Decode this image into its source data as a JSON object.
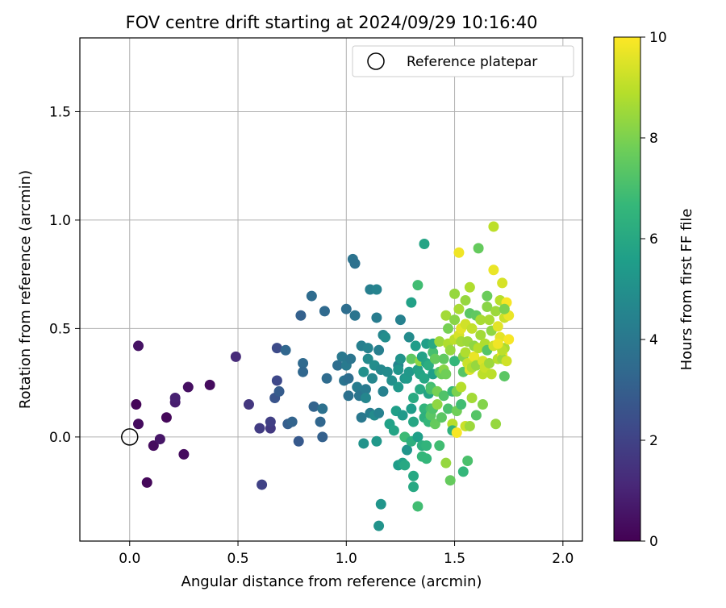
{
  "chart_data": {
    "type": "scatter",
    "title": "FOV centre drift starting at 2024/09/29 10:16:40",
    "xlabel": "Angular distance from reference (arcmin)",
    "ylabel": "Rotation from reference (arcmin)",
    "xlim": [
      -0.23,
      2.09
    ],
    "ylim": [
      -0.48,
      1.84
    ],
    "xticks": [
      0.0,
      0.5,
      1.0,
      1.5,
      2.0
    ],
    "xtick_labels": [
      "0.0",
      "0.5",
      "1.0",
      "1.5",
      "2.0"
    ],
    "yticks": [
      0.0,
      0.5,
      1.0,
      1.5
    ],
    "ytick_labels": [
      "0.0",
      "0.5",
      "1.0",
      "1.5"
    ],
    "grid": true,
    "legend": {
      "placement": "top-right",
      "entries": [
        "Reference platepar"
      ]
    },
    "reference_point": {
      "x": 0.0,
      "y": 0.0
    },
    "colorbar": {
      "label": "Hours from first FF file",
      "range": [
        0,
        10
      ],
      "ticks": [
        0,
        2,
        4,
        6,
        8,
        10
      ],
      "colormap": "viridis",
      "colors": [
        "#440154",
        "#482878",
        "#3e4989",
        "#31688e",
        "#26828e",
        "#1f9e89",
        "#35b779",
        "#6ece58",
        "#b5de2b",
        "#fde725"
      ]
    },
    "points": [
      [
        0.03,
        0.15,
        0.1
      ],
      [
        0.04,
        0.42,
        0.5
      ],
      [
        0.04,
        0.06,
        0.3
      ],
      [
        0.08,
        -0.21,
        0.2
      ],
      [
        0.11,
        -0.04,
        0.3
      ],
      [
        0.14,
        -0.01,
        0.6
      ],
      [
        0.17,
        0.09,
        0.2
      ],
      [
        0.21,
        0.16,
        0.8
      ],
      [
        0.21,
        0.18,
        0.9
      ],
      [
        0.25,
        -0.08,
        0.3
      ],
      [
        0.27,
        0.23,
        0.4
      ],
      [
        0.37,
        0.24,
        0.3
      ],
      [
        0.49,
        0.37,
        1.2
      ],
      [
        0.55,
        0.15,
        1.6
      ],
      [
        0.6,
        0.04,
        1.8
      ],
      [
        0.61,
        -0.22,
        2.0
      ],
      [
        0.65,
        0.04,
        1.7
      ],
      [
        0.65,
        0.07,
        1.9
      ],
      [
        0.67,
        0.18,
        2.6
      ],
      [
        0.68,
        0.26,
        2.2
      ],
      [
        0.68,
        0.41,
        2.3
      ],
      [
        0.69,
        0.21,
        2.9
      ],
      [
        0.72,
        0.4,
        3.3
      ],
      [
        0.73,
        0.06,
        3.0
      ],
      [
        0.75,
        0.07,
        3.2
      ],
      [
        0.78,
        -0.02,
        2.8
      ],
      [
        0.79,
        0.56,
        3.1
      ],
      [
        0.8,
        0.34,
        3.4
      ],
      [
        0.8,
        0.3,
        3.3
      ],
      [
        0.84,
        0.65,
        3.5
      ],
      [
        0.85,
        0.14,
        3.2
      ],
      [
        0.88,
        0.07,
        3.3
      ],
      [
        0.89,
        0.13,
        3.7
      ],
      [
        0.89,
        0.0,
        3.1
      ],
      [
        0.9,
        0.58,
        3.4
      ],
      [
        0.91,
        0.27,
        3.5
      ],
      [
        0.96,
        0.33,
        3.6
      ],
      [
        0.98,
        0.37,
        4.0
      ],
      [
        0.99,
        0.26,
        3.8
      ],
      [
        1.0,
        0.33,
        4.1
      ],
      [
        1.0,
        0.59,
        3.6
      ],
      [
        1.01,
        0.27,
        3.6
      ],
      [
        1.01,
        0.19,
        3.7
      ],
      [
        1.02,
        0.36,
        3.9
      ],
      [
        1.03,
        0.82,
        3.8
      ],
      [
        1.04,
        0.8,
        3.7
      ],
      [
        1.04,
        0.56,
        3.9
      ],
      [
        1.05,
        0.23,
        4.2
      ],
      [
        1.06,
        0.19,
        3.9
      ],
      [
        1.07,
        0.42,
        4.3
      ],
      [
        1.07,
        0.09,
        4.0
      ],
      [
        1.08,
        0.3,
        5.0
      ],
      [
        1.08,
        -0.03,
        5.1
      ],
      [
        1.09,
        0.22,
        4.1
      ],
      [
        1.09,
        0.18,
        4.6
      ],
      [
        1.1,
        0.41,
        4.5
      ],
      [
        1.1,
        0.36,
        4.8
      ],
      [
        1.11,
        0.11,
        4.2
      ],
      [
        1.11,
        0.68,
        4.3
      ],
      [
        1.12,
        0.27,
        4.6
      ],
      [
        1.13,
        0.1,
        4.8
      ],
      [
        1.13,
        0.33,
        4.9
      ],
      [
        1.14,
        0.68,
        4.5
      ],
      [
        1.14,
        0.55,
        4.2
      ],
      [
        1.14,
        -0.02,
        5.3
      ],
      [
        1.15,
        -0.41,
        5.1
      ],
      [
        1.15,
        0.11,
        4.4
      ],
      [
        1.15,
        0.4,
        4.3
      ],
      [
        1.16,
        0.31,
        4.7
      ],
      [
        1.16,
        -0.31,
        5.2
      ],
      [
        1.17,
        0.47,
        4.6
      ],
      [
        1.17,
        0.21,
        4.4
      ],
      [
        1.18,
        0.46,
        4.9
      ],
      [
        1.19,
        0.3,
        4.8
      ],
      [
        1.2,
        0.06,
        5.7
      ],
      [
        1.21,
        0.26,
        5.0
      ],
      [
        1.22,
        0.03,
        5.8
      ],
      [
        1.23,
        0.12,
        5.6
      ],
      [
        1.24,
        0.33,
        4.5
      ],
      [
        1.24,
        0.31,
        5.2
      ],
      [
        1.24,
        0.23,
        5.3
      ],
      [
        1.24,
        -0.13,
        5.5
      ],
      [
        1.25,
        0.54,
        4.4
      ],
      [
        1.25,
        0.36,
        5.1
      ],
      [
        1.26,
        0.1,
        5.4
      ],
      [
        1.26,
        -0.12,
        5.7
      ],
      [
        1.27,
        0.0,
        6.8
      ],
      [
        1.27,
        0.27,
        5.2
      ],
      [
        1.27,
        -0.13,
        6.0
      ],
      [
        1.28,
        0.27,
        5.4
      ],
      [
        1.28,
        -0.06,
        5.2
      ],
      [
        1.29,
        0.46,
        4.8
      ],
      [
        1.29,
        0.3,
        5.3
      ],
      [
        1.3,
        0.13,
        5.5
      ],
      [
        1.3,
        0.36,
        7.5
      ],
      [
        1.3,
        0.62,
        5.7
      ],
      [
        1.3,
        -0.02,
        6.3
      ],
      [
        1.31,
        -0.18,
        6.0
      ],
      [
        1.31,
        0.18,
        6.1
      ],
      [
        1.31,
        -0.23,
        6.0
      ],
      [
        1.31,
        0.07,
        5.9
      ],
      [
        1.32,
        0.42,
        5.5
      ],
      [
        1.33,
        0.31,
        5.7
      ],
      [
        1.33,
        0.0,
        5.6
      ],
      [
        1.33,
        0.7,
        6.9
      ],
      [
        1.33,
        -0.32,
        6.9
      ],
      [
        1.34,
        0.22,
        6.0
      ],
      [
        1.34,
        0.35,
        8.3
      ],
      [
        1.34,
        0.29,
        5.8
      ],
      [
        1.35,
        0.37,
        5.7
      ],
      [
        1.35,
        -0.09,
        6.6
      ],
      [
        1.35,
        -0.04,
        6.3
      ],
      [
        1.36,
        0.89,
        5.8
      ],
      [
        1.36,
        0.13,
        6.5
      ],
      [
        1.36,
        0.09,
        6.3
      ],
      [
        1.36,
        0.27,
        5.9
      ],
      [
        1.37,
        0.43,
        5.6
      ],
      [
        1.37,
        -0.04,
        6.5
      ],
      [
        1.37,
        -0.1,
        6.6
      ],
      [
        1.37,
        0.34,
        5.8
      ],
      [
        1.38,
        0.2,
        5.8
      ],
      [
        1.38,
        0.07,
        6.6
      ],
      [
        1.38,
        0.33,
        6.2
      ],
      [
        1.39,
        0.23,
        6.9
      ],
      [
        1.39,
        0.13,
        7.0
      ],
      [
        1.39,
        0.22,
        7.1
      ],
      [
        1.39,
        0.1,
        7.4
      ],
      [
        1.4,
        0.39,
        7.0
      ],
      [
        1.4,
        0.29,
        5.6
      ],
      [
        1.4,
        0.13,
        7.2
      ],
      [
        1.4,
        0.43,
        6.0
      ],
      [
        1.41,
        0.36,
        7.6
      ],
      [
        1.41,
        0.06,
        7.6
      ],
      [
        1.42,
        0.15,
        8.3
      ],
      [
        1.42,
        0.21,
        7.9
      ],
      [
        1.43,
        0.3,
        7.3
      ],
      [
        1.43,
        0.44,
        8.5
      ],
      [
        1.43,
        -0.04,
        6.9
      ],
      [
        1.44,
        0.29,
        7.7
      ],
      [
        1.44,
        0.09,
        7.4
      ],
      [
        1.45,
        0.36,
        7.5
      ],
      [
        1.45,
        0.19,
        7.2
      ],
      [
        1.45,
        0.31,
        8.2
      ],
      [
        1.46,
        0.56,
        8.6
      ],
      [
        1.46,
        0.29,
        7.8
      ],
      [
        1.46,
        -0.12,
        8.4
      ],
      [
        1.47,
        0.5,
        7.9
      ],
      [
        1.47,
        0.43,
        8.8
      ],
      [
        1.47,
        0.13,
        7.1
      ],
      [
        1.48,
        -0.2,
        7.6
      ],
      [
        1.48,
        0.4,
        8.4
      ],
      [
        1.49,
        0.06,
        8.9
      ],
      [
        1.49,
        0.03,
        6.4
      ],
      [
        1.49,
        0.21,
        6.7
      ],
      [
        1.5,
        0.45,
        9.0
      ],
      [
        1.5,
        0.66,
        8.4
      ],
      [
        1.5,
        0.54,
        8.2
      ],
      [
        1.5,
        0.35,
        6.6
      ],
      [
        1.51,
        0.21,
        8.0
      ],
      [
        1.51,
        0.02,
        9.9
      ],
      [
        1.51,
        0.12,
        7.8
      ],
      [
        1.52,
        0.85,
        9.8
      ],
      [
        1.52,
        0.47,
        9.4
      ],
      [
        1.52,
        0.59,
        8.7
      ],
      [
        1.53,
        0.44,
        8.6
      ],
      [
        1.53,
        0.5,
        9.6
      ],
      [
        1.53,
        0.23,
        8.9
      ],
      [
        1.53,
        0.15,
        6.9
      ],
      [
        1.54,
        0.3,
        7.3
      ],
      [
        1.54,
        0.37,
        8.1
      ],
      [
        1.54,
        -0.16,
        6.6
      ],
      [
        1.55,
        0.52,
        9.3
      ],
      [
        1.55,
        0.39,
        8.8
      ],
      [
        1.55,
        0.05,
        9.2
      ],
      [
        1.55,
        0.63,
        8.4
      ],
      [
        1.56,
        0.44,
        8.5
      ],
      [
        1.56,
        0.34,
        9.2
      ],
      [
        1.56,
        -0.11,
        7.1
      ],
      [
        1.57,
        0.05,
        8.5
      ],
      [
        1.57,
        0.57,
        7.4
      ],
      [
        1.57,
        0.69,
        8.8
      ],
      [
        1.57,
        0.31,
        9.5
      ],
      [
        1.58,
        0.5,
        9.1
      ],
      [
        1.58,
        0.32,
        8.8
      ],
      [
        1.58,
        0.18,
        8.6
      ],
      [
        1.59,
        0.42,
        8.3
      ],
      [
        1.59,
        0.37,
        9.7
      ],
      [
        1.6,
        0.56,
        7.5
      ],
      [
        1.6,
        0.33,
        8.4
      ],
      [
        1.6,
        0.1,
        7.3
      ],
      [
        1.61,
        0.87,
        7.6
      ],
      [
        1.61,
        0.41,
        8.9
      ],
      [
        1.62,
        0.47,
        8.6
      ],
      [
        1.62,
        0.54,
        8.7
      ],
      [
        1.63,
        0.29,
        9.0
      ],
      [
        1.63,
        0.15,
        8.1
      ],
      [
        1.63,
        0.35,
        9.4
      ],
      [
        1.64,
        0.43,
        8.8
      ],
      [
        1.64,
        0.32,
        9.2
      ],
      [
        1.65,
        0.4,
        7.3
      ],
      [
        1.65,
        0.6,
        8.2
      ],
      [
        1.65,
        0.65,
        7.7
      ],
      [
        1.66,
        0.34,
        8.5
      ],
      [
        1.66,
        0.54,
        8.7
      ],
      [
        1.67,
        0.49,
        8.3
      ],
      [
        1.67,
        0.29,
        9.0
      ],
      [
        1.68,
        0.97,
        9.0
      ],
      [
        1.68,
        0.77,
        9.7
      ],
      [
        1.68,
        0.42,
        9.3
      ],
      [
        1.69,
        0.58,
        8.5
      ],
      [
        1.69,
        0.06,
        8.4
      ],
      [
        1.7,
        0.36,
        8.9
      ],
      [
        1.7,
        0.51,
        9.6
      ],
      [
        1.71,
        0.63,
        8.9
      ],
      [
        1.71,
        0.46,
        9.6
      ],
      [
        1.72,
        0.71,
        9.4
      ],
      [
        1.72,
        0.38,
        9.8
      ],
      [
        1.72,
        0.36,
        8.5
      ],
      [
        1.73,
        0.55,
        9.2
      ],
      [
        1.73,
        0.28,
        7.4
      ],
      [
        1.73,
        0.41,
        8.7
      ],
      [
        1.74,
        0.35,
        9.3
      ],
      [
        1.74,
        0.62,
        9.9
      ],
      [
        1.75,
        0.45,
        9.9
      ],
      [
        1.75,
        0.56,
        9.7
      ],
      [
        1.73,
        0.59,
        8.0
      ],
      [
        1.72,
        0.4,
        9.0
      ],
      [
        1.7,
        0.43,
        9.8
      ]
    ]
  }
}
